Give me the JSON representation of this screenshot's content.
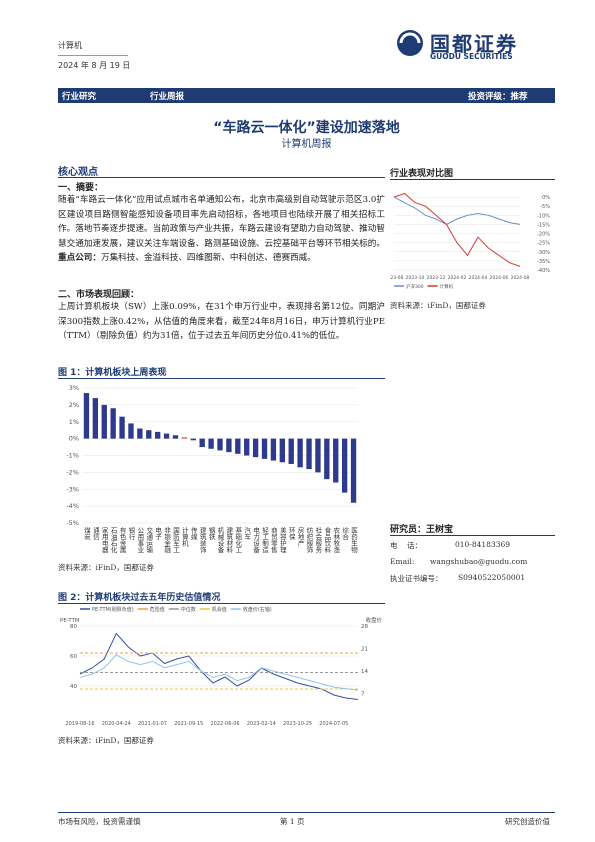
{
  "header": {
    "sector": "计算机",
    "date": "2024 年 8 月 19 日",
    "logo": "国都证券",
    "logo_en": "GUODU SECURITIES"
  },
  "band": {
    "left1": "行业研究",
    "left2": "行业周报",
    "rating": "投资评级：推荐"
  },
  "title": "“车路云一体化”建设加速落地",
  "subtitle": "计算机周报",
  "core": {
    "heading": "核心观点",
    "s1_title": "一、摘要：",
    "s1_text": "随着“车路云一体化”应用试点城市名单通知公布，北京市高级别自动驾驶示范区3.0扩区建设项目路侧智能感知设备项目率先启动招标，各地项目也陆续开展了相关招标工作。落地节奏逐步提速。当前政策与产业共振，车路云建设有望助力自动驾驶、推动智慧交通加速发展，建议关注车端设备、路测基础设施、云控基础平台等环节相关标的。",
    "s1_bold": "重点公司：",
    "s1_tail": "万集科技、金溢科技、四维图新、中科创达、德赛西威。",
    "s2_title": "二、市场表现回顾：",
    "s2_text": "上周计算机板块（SW）上涨0.09%，在31个申万行业中，表现排名第12位。同期沪深300指数上涨0.42%，从估值的角度来看，截至24年8月16日，申万计算机行业PE（TTM）（剔除负值）约为31倍，位于过去五年间历史分位0.41%的低位。"
  },
  "fig1": {
    "caption": "图 1：计算机板块上周表现",
    "source": "资料来源：iFinD，国都证券",
    "chart": {
      "type": "bar",
      "color": "#2e3a8c",
      "highlight_color": "#e8746a",
      "highlight": 11,
      "categories": [
        "煤炭",
        "通信",
        "家用电器",
        "石油石化",
        "有色金属",
        "银行",
        "公用事业",
        "交通运输",
        "电子",
        "非银金融",
        "国防军工",
        "计算机",
        "传媒",
        "建筑装饰",
        "钢铁",
        "机械设备",
        "建筑材料",
        "基础化工",
        "汽车",
        "电力设备",
        "轻工制造",
        "商贸零售",
        "美容护理",
        "环保",
        "房地产",
        "纺织服饰",
        "社会服务",
        "食品饮料",
        "农林牧渔",
        "综合",
        "医药生物"
      ],
      "values": [
        2.7,
        2.4,
        2.0,
        1.8,
        1.3,
        0.9,
        0.6,
        0.5,
        0.4,
        0.3,
        0.2,
        0.09,
        -0.1,
        -0.5,
        -0.6,
        -0.7,
        -0.8,
        -0.9,
        -1.0,
        -1.1,
        -1.2,
        -1.3,
        -1.4,
        -1.5,
        -1.7,
        -1.8,
        -2.0,
        -2.4,
        -2.6,
        -3.2,
        -3.8
      ],
      "ylim": [
        -5,
        3
      ],
      "yticks": [
        {
          "value": 3,
          "label": "3%"
        },
        {
          "value": 2,
          "label": "2%"
        },
        {
          "value": 1,
          "label": "1%"
        },
        {
          "value": 0,
          "label": "0%"
        },
        {
          "value": -1,
          "label": "-1%"
        },
        {
          "value": -2,
          "label": "-2%"
        },
        {
          "value": -3,
          "label": "-3%"
        },
        {
          "value": -4,
          "label": "-4%"
        },
        {
          "value": -5,
          "label": "-5%"
        }
      ]
    }
  },
  "fig2": {
    "caption": "图 2：计算机板块过去五年历史估值情况",
    "source": "资料来源：iFinD，国都证券",
    "chart": {
      "type": "line",
      "y_label": "PE-TTM",
      "y2_label": "收盘价",
      "categories": [
        "2019-08-16",
        null,
        null,
        "2020-04-24",
        null,
        null,
        "2021-01-07",
        null,
        null,
        "2021-09-15",
        null,
        null,
        "2022-06-06",
        null,
        null,
        "2023-02-14",
        null,
        null,
        "2023-10-25",
        null,
        null,
        "2024-07-05",
        null,
        null
      ],
      "ylim": [
        20,
        80
      ],
      "yticks": [
        40,
        60,
        80
      ],
      "y2lim": [
        0,
        28
      ],
      "y2ticks": [
        7,
        14,
        21,
        28
      ],
      "series": [
        {
          "name": "PE-TTM(剔除负值)",
          "color": "#3a4fa3",
          "values": [
            48,
            52,
            58,
            75,
            66,
            60,
            62,
            55,
            58,
            60,
            50,
            42,
            46,
            40,
            44,
            52,
            48,
            45,
            42,
            40,
            38,
            34,
            32,
            31
          ]
        },
        {
          "name": "危险值",
          "color": "#f0a040",
          "dash": true,
          "values": [
            62,
            62,
            62,
            62,
            62,
            62,
            62,
            62,
            62,
            62,
            62,
            62,
            62,
            62,
            62,
            62,
            62,
            62,
            62,
            62,
            62,
            62,
            62,
            62
          ]
        },
        {
          "name": "中位数",
          "color": "#999999",
          "dash": true,
          "values": [
            49,
            49,
            49,
            49,
            49,
            49,
            49,
            49,
            49,
            49,
            49,
            49,
            49,
            49,
            49,
            49,
            49,
            49,
            49,
            49,
            49,
            49,
            49,
            49
          ]
        },
        {
          "name": "机会值",
          "color": "#e6c840",
          "dash": true,
          "values": [
            38,
            38,
            38,
            38,
            38,
            38,
            38,
            38,
            38,
            38,
            38,
            38,
            38,
            38,
            38,
            38,
            38,
            38,
            38,
            38,
            38,
            38,
            38,
            38
          ]
        },
        {
          "name": "收盘价(右轴)",
          "color": "#8fc3e8",
          "axis": "y2",
          "values": [
            12,
            13,
            15,
            19,
            17,
            16,
            17,
            15,
            16,
            17,
            14,
            12,
            13,
            11,
            12,
            15,
            14,
            13,
            12,
            11,
            10,
            9,
            8.5,
            8
          ]
        }
      ]
    }
  },
  "fig3": {
    "caption": "行业表现对比图",
    "source": "资料来源：iFinD，国都证券",
    "chart": {
      "type": "line",
      "categories": [
        "2023-08",
        null,
        "2023-10",
        null,
        "2023-12",
        null,
        "2024-02",
        null,
        "2024-04",
        null,
        "2024-06",
        null,
        "2024-08"
      ],
      "ylim": [
        -40,
        5
      ],
      "yticks": [
        {
          "value": 0,
          "label": "0%"
        },
        {
          "value": -5,
          "label": "-5%"
        },
        {
          "value": -10,
          "label": "-10%"
        },
        {
          "value": -15,
          "label": "-15%"
        },
        {
          "value": -20,
          "label": "-20%"
        },
        {
          "value": -25,
          "label": "-25%"
        },
        {
          "value": -30,
          "label": "-30%"
        },
        {
          "value": -35,
          "label": "-35%"
        },
        {
          "value": -40,
          "label": "-40%"
        }
      ],
      "series": [
        {
          "name": "沪深300",
          "color": "#6a8cc8",
          "values": [
            0,
            -3,
            -6,
            -10,
            -12,
            -15,
            -12,
            -10,
            -9,
            -10,
            -12,
            -14,
            -15
          ]
        },
        {
          "name": "计算机",
          "color": "#d23a30",
          "values": [
            0,
            2,
            -3,
            -5,
            -10,
            -15,
            -25,
            -32,
            -22,
            -28,
            -32,
            -36,
            -38
          ]
        }
      ]
    }
  },
  "analyst": {
    "title": "研究员：王树宝",
    "phone_label": "电    话：",
    "phone": "010-84183369",
    "email_label": "Email:",
    "email": "wangshubao@guodu.com",
    "cert_label": "执业证书编号：",
    "cert": "S0940522050001"
  },
  "footer": {
    "left": "市场有风险，投资需谨慎",
    "page": "第 1 页",
    "right": "研究创造价值"
  }
}
